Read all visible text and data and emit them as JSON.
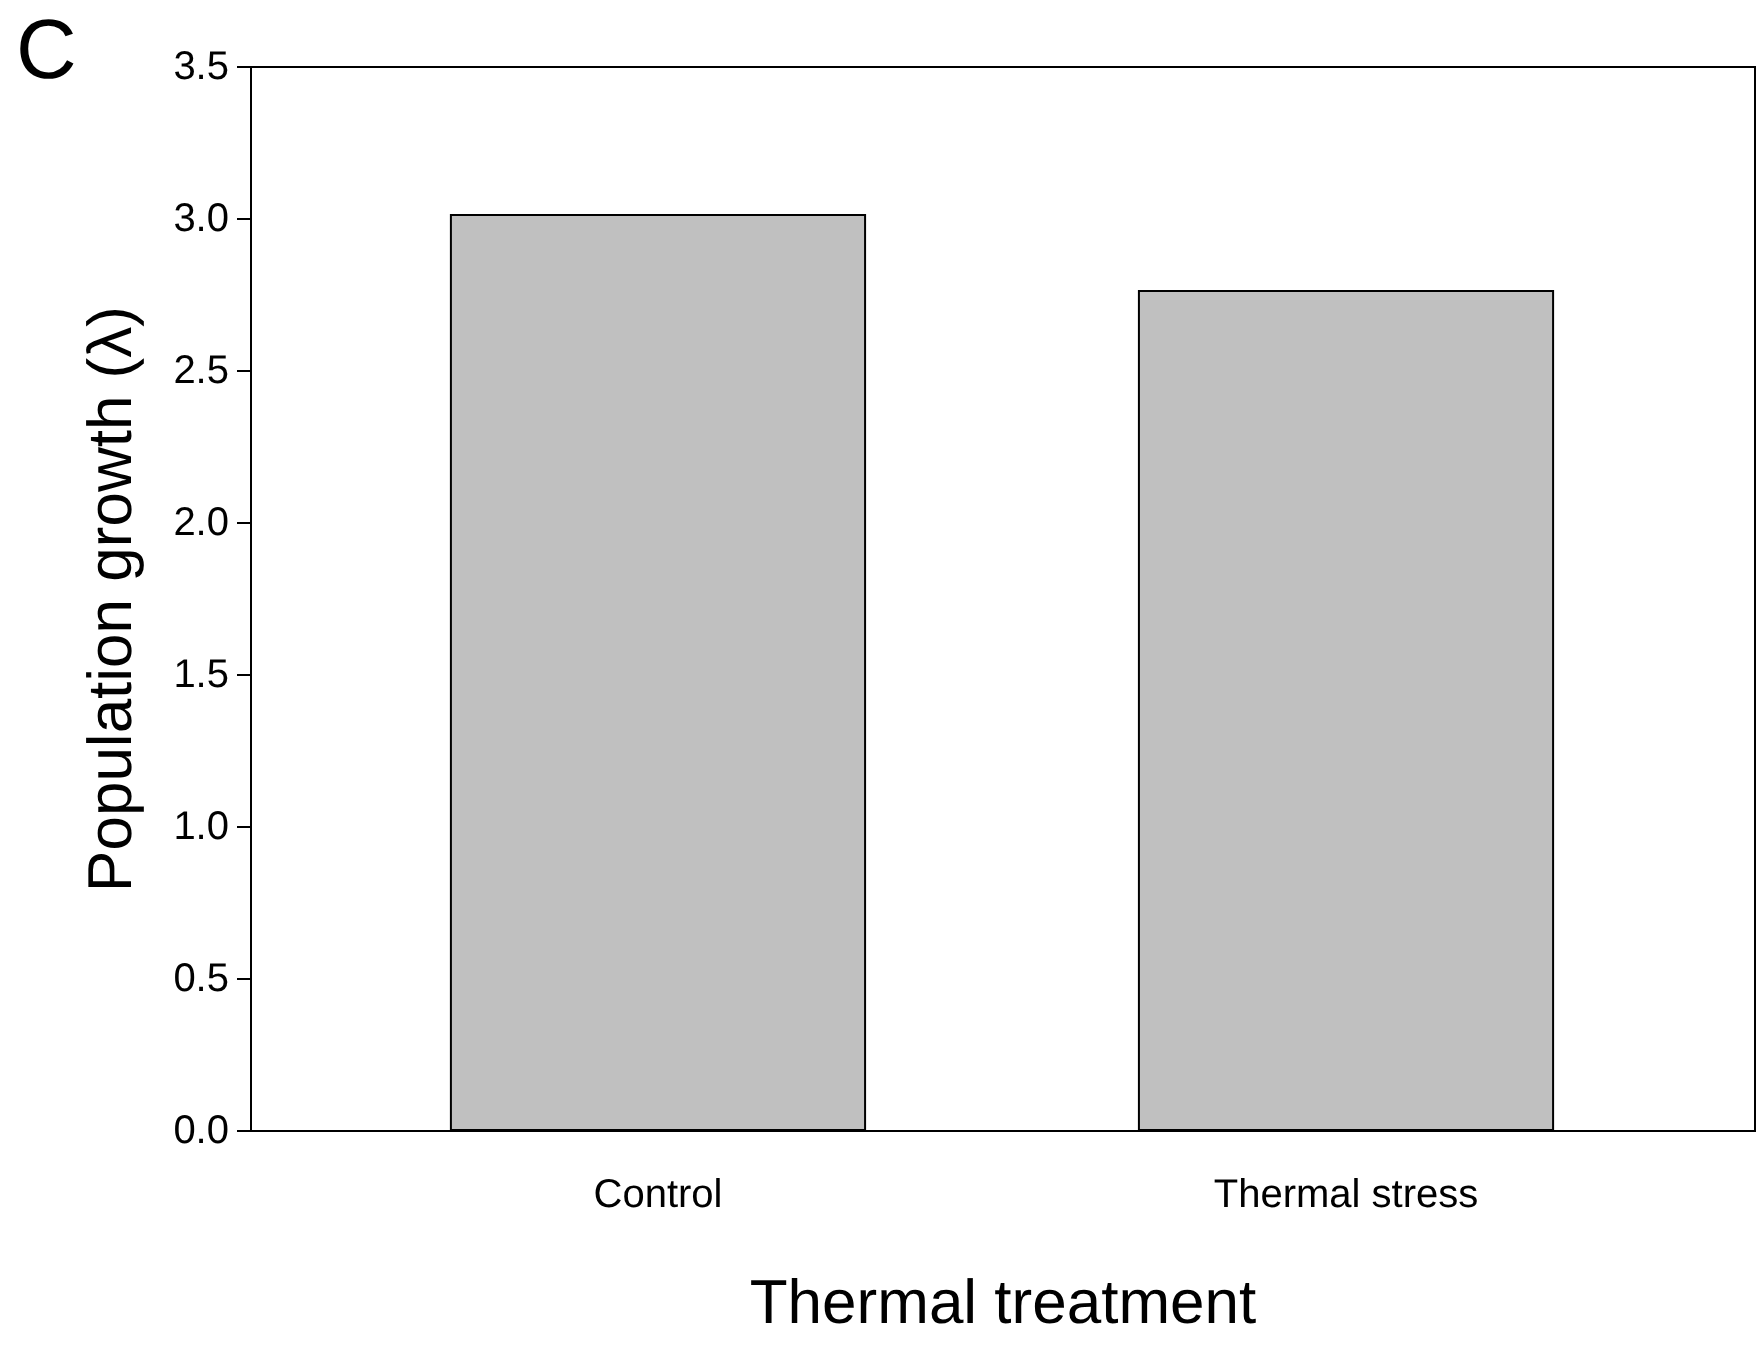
{
  "chart_data": {
    "type": "bar",
    "xlabel": "Thermal treatment",
    "ylabel": "Population growth (λ)",
    "annotations": [
      "C"
    ],
    "categories": [
      "Control",
      "Thermal stress"
    ],
    "values": [
      3.01,
      2.76
    ],
    "color": "#c0c0c0",
    "ylim": [
      0,
      3.5
    ],
    "yticks": [
      {
        "value": 0,
        "label": "0.0"
      },
      {
        "value": 0.5,
        "label": "0.5"
      },
      {
        "value": 1,
        "label": "1.0"
      },
      {
        "value": 1.5,
        "label": "1.5"
      },
      {
        "value": 2,
        "label": "2.0"
      },
      {
        "value": 2.5,
        "label": "2.5"
      },
      {
        "value": 3,
        "label": "3.0"
      },
      {
        "value": 3.5,
        "label": "3.5"
      }
    ],
    "grid": false
  }
}
